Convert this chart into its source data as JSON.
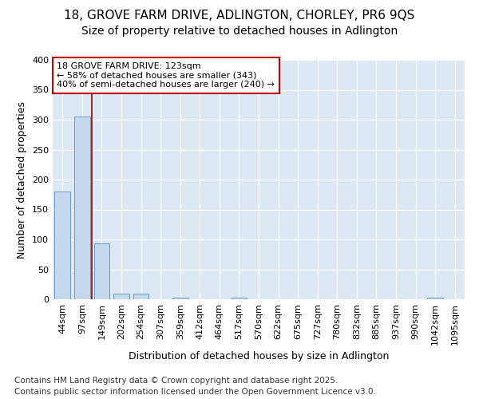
{
  "title1": "18, GROVE FARM DRIVE, ADLINGTON, CHORLEY, PR6 9QS",
  "title2": "Size of property relative to detached houses in Adlington",
  "xlabel": "Distribution of detached houses by size in Adlington",
  "ylabel": "Number of detached properties",
  "bar_labels": [
    "44sqm",
    "97sqm",
    "149sqm",
    "202sqm",
    "254sqm",
    "307sqm",
    "359sqm",
    "412sqm",
    "464sqm",
    "517sqm",
    "570sqm",
    "622sqm",
    "675sqm",
    "727sqm",
    "780sqm",
    "832sqm",
    "885sqm",
    "937sqm",
    "990sqm",
    "1042sqm",
    "1095sqm"
  ],
  "bar_values": [
    180,
    305,
    93,
    9,
    10,
    0,
    3,
    0,
    0,
    3,
    0,
    0,
    0,
    0,
    0,
    0,
    0,
    0,
    0,
    3,
    0
  ],
  "bar_color": "#c5d9ed",
  "bar_edgecolor": "#6699cc",
  "vline_x": 1.5,
  "vline_color": "#990000",
  "annotation_line1": "18 GROVE FARM DRIVE: 123sqm",
  "annotation_line2": "← 58% of detached houses are smaller (343)",
  "annotation_line3": "40% of semi-detached houses are larger (240) →",
  "annotation_box_edgecolor": "#cc0000",
  "annotation_facecolor": "white",
  "ylim": [
    0,
    400
  ],
  "yticks": [
    0,
    50,
    100,
    150,
    200,
    250,
    300,
    350,
    400
  ],
  "footer1": "Contains HM Land Registry data © Crown copyright and database right 2025.",
  "footer2": "Contains public sector information licensed under the Open Government Licence v3.0.",
  "bg_color": "#ffffff",
  "plot_bg_color": "#dce9f5",
  "grid_color": "#ffffff",
  "title_fontsize": 11,
  "subtitle_fontsize": 10,
  "axis_label_fontsize": 9,
  "tick_fontsize": 8,
  "annotation_fontsize": 8,
  "footer_fontsize": 7.5
}
